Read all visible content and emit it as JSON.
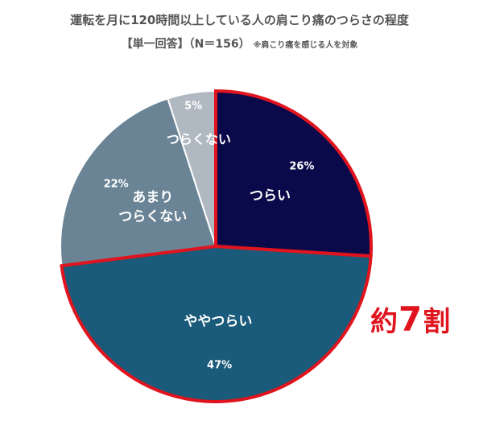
{
  "title": "運転を月に120時間以上している人の肩こり痛のつらさの程度",
  "subtitle": "【単一回答】（N＝156）",
  "subtitle_note": "※肩こり痛を感じる人を対象",
  "callout": {
    "prefix": "約",
    "number": "7",
    "suffix": "割"
  },
  "colors": {
    "highlight": "#e0141e"
  },
  "chart_data": {
    "type": "pie",
    "title": "運転を月に120時間以上している人の肩こり痛のつらさの程度",
    "slices": [
      {
        "label": "つらい",
        "value": 26,
        "value_label": "26%",
        "color": "#0a0a4a",
        "highlight": true
      },
      {
        "label": "ややつらい",
        "value": 47,
        "value_label": "47%",
        "color": "#1a5a7a",
        "highlight": true
      },
      {
        "label": "あまり\nつらくない",
        "value": 22,
        "value_label": "22%",
        "color": "#6a8496",
        "highlight": false
      },
      {
        "label": "つらくない",
        "value": 5,
        "value_label": "5%",
        "color": "#b0b8c2",
        "highlight": false
      }
    ]
  }
}
